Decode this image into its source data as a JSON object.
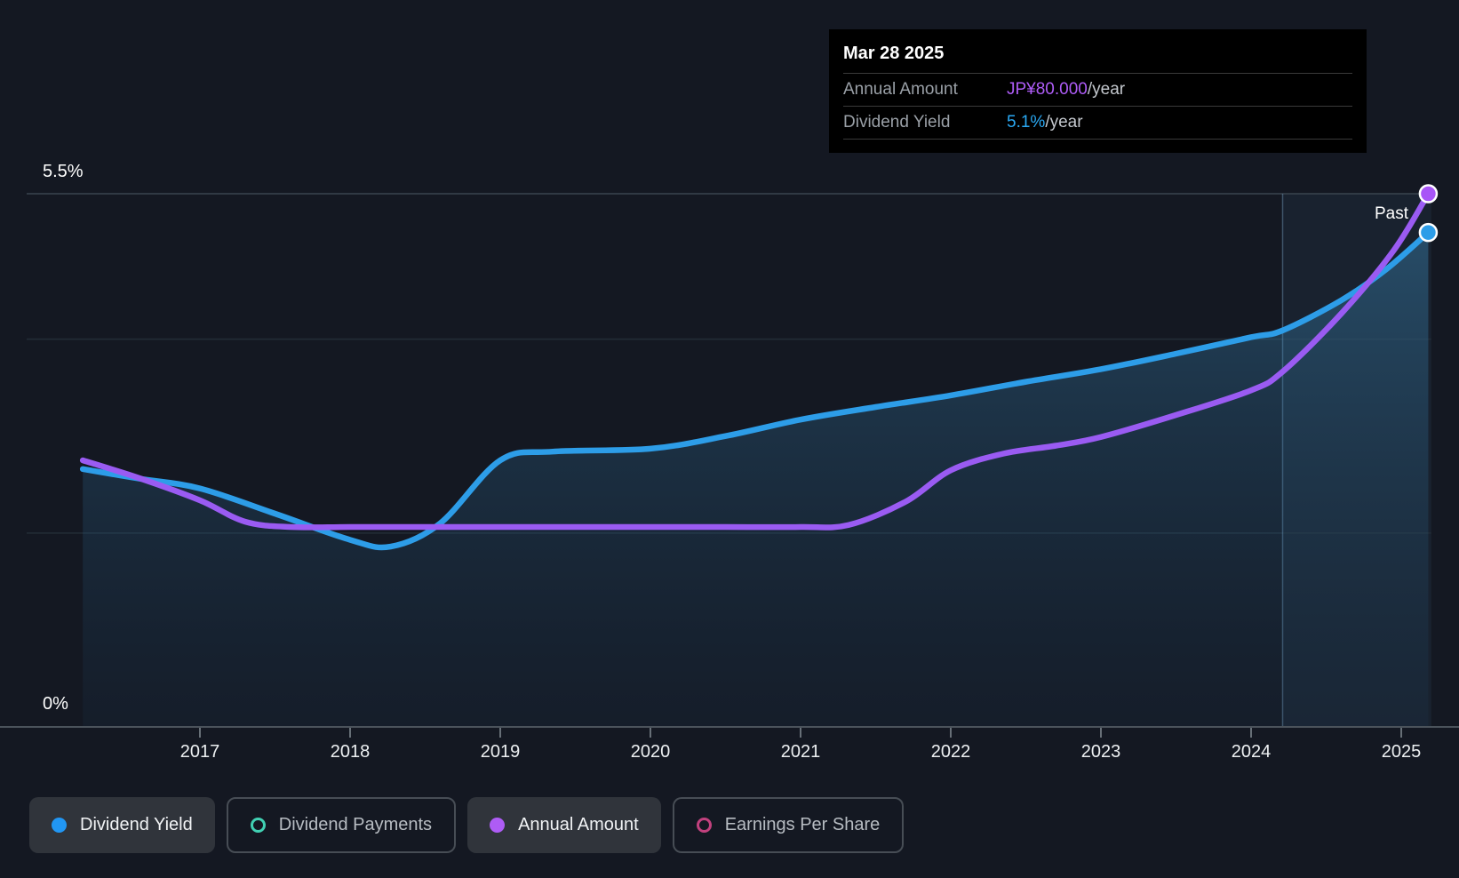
{
  "page": {
    "background": "#141822"
  },
  "tooltip": {
    "date": "Mar 28 2025",
    "rows": [
      {
        "label": "Annual Amount",
        "value": "JP¥80.000",
        "suffix": "/year",
        "value_color": "#AE5CF7"
      },
      {
        "label": "Dividend Yield",
        "value": "5.1%",
        "suffix": "/year",
        "value_color": "#2AA9F4"
      }
    ]
  },
  "chart_data": {
    "type": "line",
    "title": "",
    "past_label": "Past",
    "past_divider_year": 2024.21,
    "x_axis": {
      "start_year": 2016.22,
      "end_year": 2025.2,
      "tick_years": [
        2017,
        2018,
        2019,
        2020,
        2021,
        2022,
        2023,
        2024,
        2025
      ],
      "tick_labels": [
        "2017",
        "2018",
        "2019",
        "2020",
        "2021",
        "2022",
        "2023",
        "2024",
        "2025"
      ]
    },
    "y_axis": {
      "unit": "%",
      "min": 0,
      "max": 5.5,
      "top_label": "5.5%",
      "bottom_label": "0%",
      "gridline_values_pct": [
        5.5,
        4,
        2
      ],
      "grid": true
    },
    "series": [
      {
        "name": "Dividend Yield",
        "unit": "%",
        "color": "#2D9DE8",
        "area_fill": true,
        "end_value": "5.1%/year",
        "points": [
          [
            2016.22,
            2.66
          ],
          [
            2016.6,
            2.56
          ],
          [
            2017,
            2.46
          ],
          [
            2017.5,
            2.2
          ],
          [
            2018,
            1.93
          ],
          [
            2018.27,
            1.86
          ],
          [
            2018.6,
            2.1
          ],
          [
            2019,
            2.75
          ],
          [
            2019.35,
            2.84
          ],
          [
            2020,
            2.87
          ],
          [
            2020.5,
            3.0
          ],
          [
            2021,
            3.17
          ],
          [
            2021.5,
            3.3
          ],
          [
            2022,
            3.42
          ],
          [
            2022.5,
            3.56
          ],
          [
            2023,
            3.69
          ],
          [
            2023.5,
            3.85
          ],
          [
            2024,
            4.02
          ],
          [
            2024.21,
            4.09
          ],
          [
            2024.6,
            4.4
          ],
          [
            2024.9,
            4.72
          ],
          [
            2025.18,
            5.1
          ]
        ]
      },
      {
        "name": "Annual Amount",
        "unit": "JP¥/year",
        "color": "#9A5BF2",
        "area_fill": false,
        "end_value": "JP¥80.000/year",
        "points": [
          [
            2016.22,
            40
          ],
          [
            2016.6,
            37.3
          ],
          [
            2017,
            34
          ],
          [
            2017.3,
            30.8
          ],
          [
            2017.6,
            30
          ],
          [
            2018,
            30
          ],
          [
            2018.5,
            30
          ],
          [
            2019,
            30
          ],
          [
            2019.5,
            30
          ],
          [
            2020,
            30
          ],
          [
            2020.5,
            30
          ],
          [
            2021,
            30
          ],
          [
            2021.32,
            30.3
          ],
          [
            2021.7,
            33.8
          ],
          [
            2022,
            38.5
          ],
          [
            2022.35,
            41
          ],
          [
            2022.7,
            42.2
          ],
          [
            2023,
            43.5
          ],
          [
            2023.5,
            46.8
          ],
          [
            2024,
            50.5
          ],
          [
            2024.21,
            53.3
          ],
          [
            2024.6,
            62
          ],
          [
            2024.95,
            71.5
          ],
          [
            2025.18,
            80
          ]
        ]
      }
    ]
  },
  "legend": {
    "items": [
      {
        "label": "Dividend Yield",
        "marker": "filled",
        "color": "#2196F3",
        "active": true
      },
      {
        "label": "Dividend Payments",
        "marker": "outline",
        "color": "#41D0B3",
        "active": false
      },
      {
        "label": "Annual Amount",
        "marker": "filled",
        "color": "#AE5CF5",
        "active": true
      },
      {
        "label": "Earnings Per Share",
        "marker": "outline",
        "color": "#C2417E",
        "active": false
      }
    ]
  }
}
